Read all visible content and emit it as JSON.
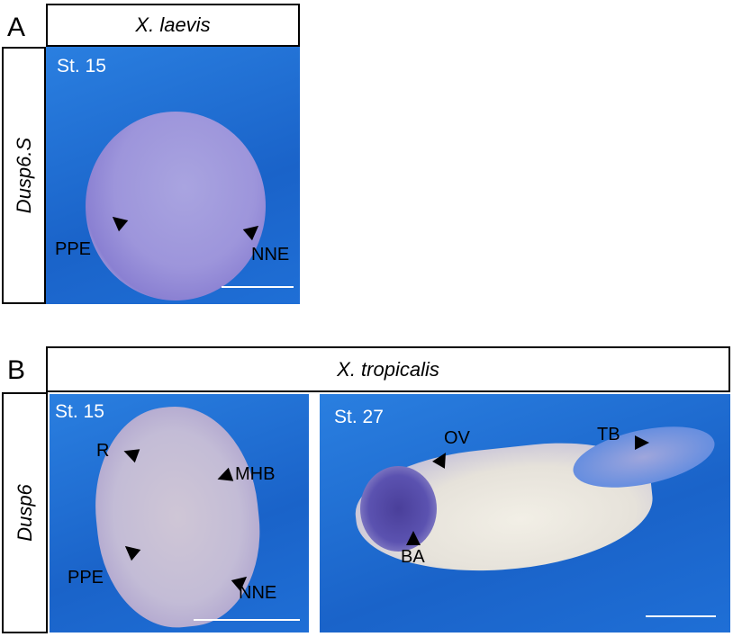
{
  "panel_a": {
    "label": "A",
    "species": "X. laevis",
    "gene": "Dusp6.S",
    "stage": "St. 15",
    "annotations": [
      "PPE",
      "NNE"
    ]
  },
  "panel_b": {
    "label": "B",
    "species": "X. tropicalis",
    "gene": "Dusp6",
    "left": {
      "stage": "St. 15",
      "annotations": [
        "R",
        "MHB",
        "PPE",
        "NNE"
      ]
    },
    "right": {
      "stage": "St. 27",
      "annotations": [
        "OV",
        "TB",
        "BA"
      ]
    }
  },
  "colors": {
    "background_blue": "#1f6fd6",
    "stain": "#6a5fc0"
  }
}
